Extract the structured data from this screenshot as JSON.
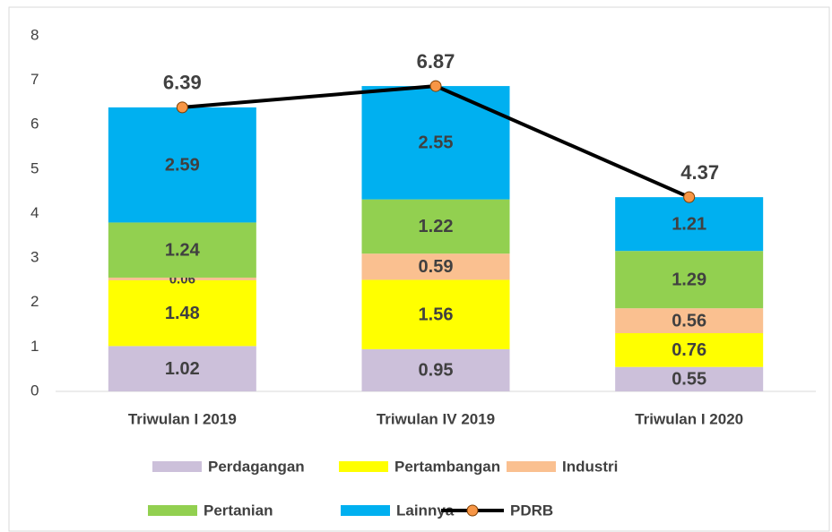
{
  "chart_data": {
    "type": "bar",
    "stacked": true,
    "categories": [
      "Triwulan I 2019",
      "Triwulan IV 2019",
      "Triwulan I 2020"
    ],
    "series": [
      {
        "name": "Perdagangan",
        "color": "#ccc0da",
        "values": [
          1.02,
          0.95,
          0.55
        ]
      },
      {
        "name": "Pertambangan",
        "color": "#ffff00",
        "values": [
          1.48,
          1.56,
          0.76
        ]
      },
      {
        "name": "Industri",
        "color": "#fac090",
        "values": [
          0.06,
          0.59,
          0.56
        ]
      },
      {
        "name": "Pertanian",
        "color": "#92d050",
        "values": [
          1.24,
          1.22,
          1.29
        ]
      },
      {
        "name": "Lainnya",
        "color": "#00b0f0",
        "values": [
          2.59,
          2.55,
          1.21
        ]
      },
      {
        "name": "PDRB",
        "type": "line",
        "color": "#000000",
        "marker_color": "#f79646",
        "values": [
          6.39,
          6.87,
          4.37
        ]
      }
    ],
    "ylim": [
      0,
      8
    ],
    "yticks": [
      0,
      1,
      2,
      3,
      4,
      5,
      6,
      7,
      8
    ],
    "grid": false,
    "legend": "bottom"
  }
}
